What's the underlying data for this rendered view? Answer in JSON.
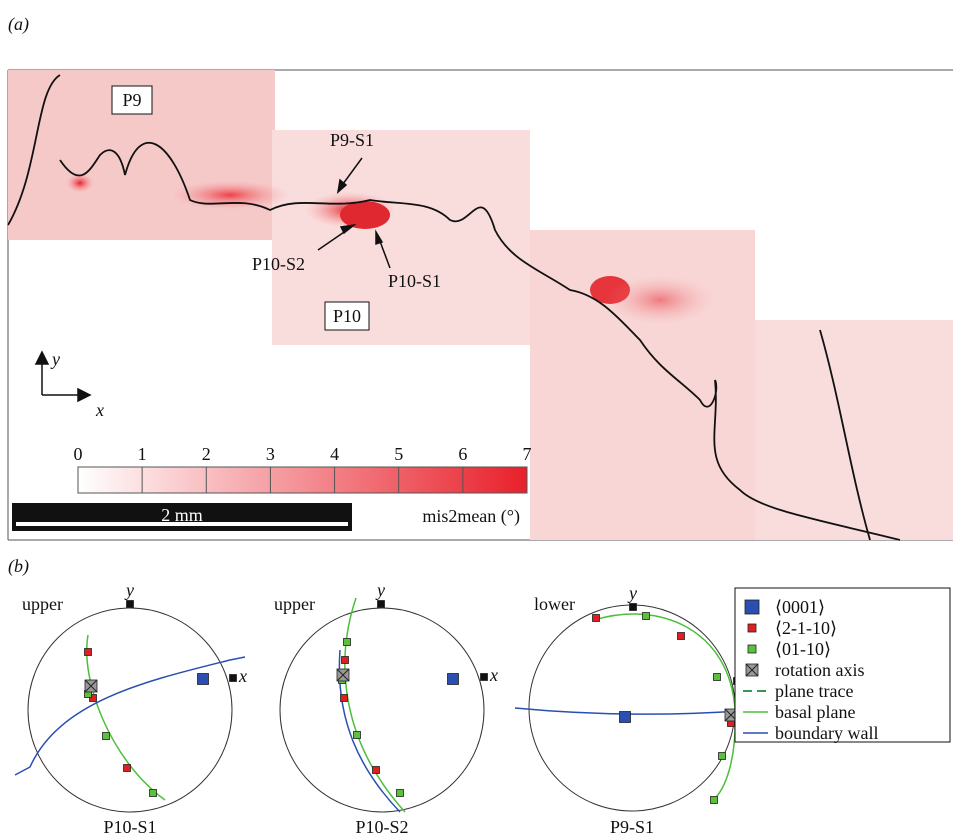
{
  "panel_a": {
    "label": "(a)",
    "grain_labels": [
      "P9",
      "P10"
    ],
    "site_labels": [
      "P9-S1",
      "P10-S2",
      "P10-S1"
    ],
    "axes": {
      "x": "x",
      "y": "y"
    },
    "colorbar": {
      "ticks": [
        0,
        1,
        2,
        3,
        4,
        5,
        6,
        7
      ],
      "label": "mis2mean (°)"
    },
    "scale_bar": "2 mm"
  },
  "panel_b": {
    "label": "(b)",
    "axes": {
      "x": "x",
      "y": "y"
    },
    "nets": [
      {
        "hemisphere": "upper",
        "title": "P10-S1"
      },
      {
        "hemisphere": "upper",
        "title": "P10-S2"
      },
      {
        "hemisphere": "lower",
        "title": "P9-S1"
      }
    ],
    "legend": [
      "⟨0001⟩",
      "⟨2-1-10⟩",
      "⟨01-10⟩",
      "rotation axis",
      "plane trace",
      "basal plane",
      "boundary wall"
    ]
  }
}
